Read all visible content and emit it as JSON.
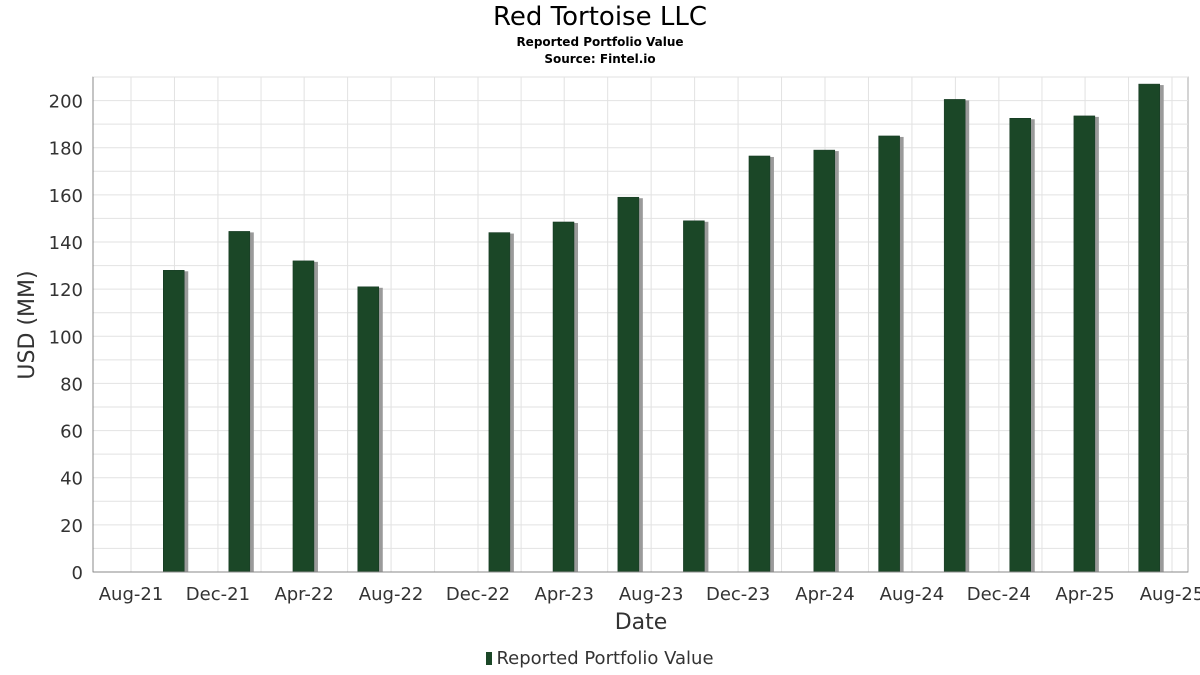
{
  "chart_data": {
    "type": "bar",
    "title": "Red Tortoise LLC",
    "subtitles": [
      "Reported Portfolio Value",
      "Source: Fintel.io"
    ],
    "xlabel": "Date",
    "ylabel": "USD (MM)",
    "ylim": [
      0,
      210
    ],
    "yticks": [
      0,
      20,
      40,
      60,
      80,
      100,
      120,
      140,
      160,
      180,
      200
    ],
    "xticks": [
      {
        "date": "2021-08-01",
        "label": "Aug-21"
      },
      {
        "date": "2021-12-01",
        "label": "Dec-21"
      },
      {
        "date": "2022-04-01",
        "label": "Apr-22"
      },
      {
        "date": "2022-08-01",
        "label": "Aug-22"
      },
      {
        "date": "2022-12-01",
        "label": "Dec-22"
      },
      {
        "date": "2023-04-01",
        "label": "Apr-23"
      },
      {
        "date": "2023-08-01",
        "label": "Aug-23"
      },
      {
        "date": "2023-12-01",
        "label": "Dec-23"
      },
      {
        "date": "2024-04-01",
        "label": "Apr-24"
      },
      {
        "date": "2024-08-01",
        "label": "Aug-24"
      },
      {
        "date": "2024-12-01",
        "label": "Dec-24"
      },
      {
        "date": "2025-04-01",
        "label": "Apr-25"
      },
      {
        "date": "2025-08-01",
        "label": "Aug-25"
      }
    ],
    "grid": true,
    "legend_position": "bottom-center",
    "series": [
      {
        "name": "Reported Portfolio Value",
        "color": "#1b4727",
        "points": [
          {
            "date": "2021-09-30",
            "value": 128
          },
          {
            "date": "2021-12-31",
            "value": 144.5
          },
          {
            "date": "2022-03-31",
            "value": 132
          },
          {
            "date": "2022-06-30",
            "value": 121
          },
          {
            "date": "2022-12-31",
            "value": 144
          },
          {
            "date": "2023-03-31",
            "value": 148.5
          },
          {
            "date": "2023-06-30",
            "value": 159
          },
          {
            "date": "2023-09-30",
            "value": 149
          },
          {
            "date": "2023-12-31",
            "value": 176.5
          },
          {
            "date": "2024-03-31",
            "value": 179
          },
          {
            "date": "2024-06-30",
            "value": 185
          },
          {
            "date": "2024-09-30",
            "value": 200.5
          },
          {
            "date": "2024-12-31",
            "value": 192.5
          },
          {
            "date": "2025-03-31",
            "value": 193.5
          },
          {
            "date": "2025-06-30",
            "value": 207
          }
        ]
      }
    ]
  }
}
